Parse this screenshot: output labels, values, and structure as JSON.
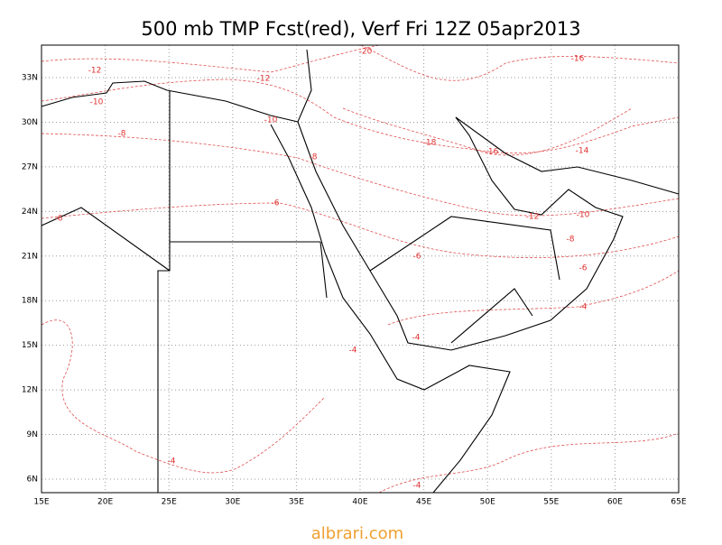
{
  "title": "500 mb TMP Fcst(red), Verf Fri 12Z 05apr2013",
  "lon_ticks": [
    {
      "value": 15,
      "label": "15E"
    },
    {
      "value": 20,
      "label": "20E"
    },
    {
      "value": 25,
      "label": "25E"
    },
    {
      "value": 30,
      "label": "30E"
    },
    {
      "value": 35,
      "label": "35E"
    },
    {
      "value": 40,
      "label": "40E"
    },
    {
      "value": 45,
      "label": "45E"
    },
    {
      "value": 50,
      "label": "50E"
    },
    {
      "value": 55,
      "label": "55E"
    },
    {
      "value": 60,
      "label": "60E"
    },
    {
      "value": 65,
      "label": "65E"
    }
  ],
  "lat_ticks": [
    {
      "value": 6,
      "label": "6N"
    },
    {
      "value": 9,
      "label": "9N"
    },
    {
      "value": 12,
      "label": "12N"
    },
    {
      "value": 15,
      "label": "15N"
    },
    {
      "value": 18,
      "label": "18N"
    },
    {
      "value": 21,
      "label": "21N"
    },
    {
      "value": 24,
      "label": "24N"
    },
    {
      "value": 27,
      "label": "27N"
    },
    {
      "value": 30,
      "label": "30N"
    },
    {
      "value": 33,
      "label": "33N"
    }
  ],
  "contour_labels": [
    "-20",
    "-16",
    "-12",
    "-12",
    "-10",
    "-10",
    "-8",
    "-18",
    "-16",
    "-14",
    "-8",
    "-6",
    "-6",
    "-12",
    "-10",
    "-8",
    "-6",
    "-6",
    "-4",
    "-4",
    "-4",
    "-4",
    "-4"
  ],
  "watermark": "albrari.com"
}
